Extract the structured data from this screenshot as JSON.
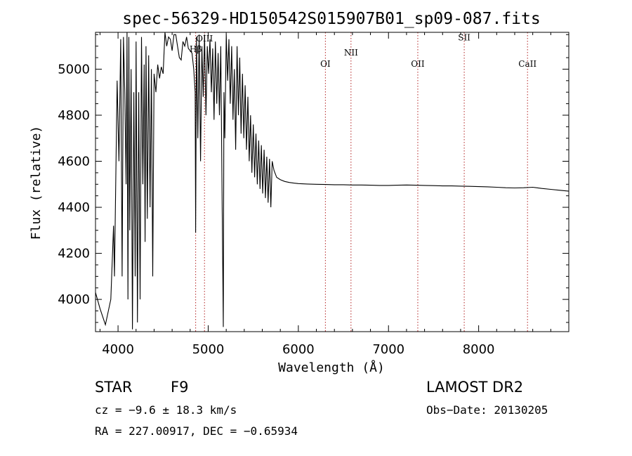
{
  "chart_data": {
    "type": "line",
    "title": "spec-56329-HD150542S015907B01_sp09-087.fits",
    "xlabel": "Wavelength (Å)",
    "ylabel": "Flux (relative)",
    "xlim": [
      3750,
      9000
    ],
    "ylim": [
      3860,
      5160
    ],
    "x_ticks": [
      4000,
      5000,
      6000,
      7000,
      8000
    ],
    "y_ticks": [
      4000,
      4200,
      4400,
      4600,
      4800,
      5000
    ],
    "grid": false,
    "line_color": "#000000",
    "marker_color": "#b22222",
    "spectral_lines": [
      {
        "label": "Hβ",
        "wavelength": 4861,
        "label_flux": 5075
      },
      {
        "label": "OIII",
        "wavelength": 4959,
        "label_flux": 5120
      },
      {
        "label": "OI",
        "wavelength": 6300,
        "label_flux": 5010
      },
      {
        "label": "NII",
        "wavelength": 6584,
        "label_flux": 5060
      },
      {
        "label": "OII",
        "wavelength": 7325,
        "label_flux": 5010
      },
      {
        "label": "SII",
        "wavelength": 7840,
        "label_flux": 5125
      },
      {
        "label": "CaII",
        "wavelength": 8542,
        "label_flux": 5010
      }
    ],
    "series": [
      {
        "x": [
          3750,
          3800,
          3860,
          3920,
          3950,
          3960,
          3990,
          4010,
          4030,
          4045,
          4060,
          4075,
          4090,
          4100,
          4110,
          4120,
          4130,
          4145,
          4160,
          4175,
          4190,
          4200,
          4215,
          4230,
          4245,
          4260,
          4275,
          4290,
          4300,
          4310,
          4325,
          4340,
          4355,
          4370,
          4385,
          4400,
          4420,
          4440,
          4460,
          4480,
          4500,
          4520,
          4540,
          4560,
          4580,
          4600,
          4620,
          4640,
          4660,
          4680,
          4700,
          4720,
          4740,
          4760,
          4780,
          4800,
          4820,
          4840,
          4855,
          4861,
          4870,
          4885,
          4900,
          4915,
          4930,
          4945,
          4960,
          4975,
          4990,
          5005,
          5020,
          5035,
          5050,
          5065,
          5080,
          5095,
          5110,
          5125,
          5140,
          5155,
          5168,
          5175,
          5185,
          5200,
          5215,
          5230,
          5245,
          5260,
          5275,
          5290,
          5305,
          5320,
          5335,
          5350,
          5365,
          5380,
          5395,
          5410,
          5425,
          5440,
          5455,
          5470,
          5485,
          5500,
          5515,
          5530,
          5545,
          5560,
          5575,
          5590,
          5605,
          5620,
          5635,
          5650,
          5665,
          5680,
          5695,
          5710,
          5730,
          5760,
          5800,
          5850,
          5900,
          5950,
          6000,
          6100,
          6200,
          6300,
          6400,
          6500,
          6600,
          6700,
          6800,
          6900,
          7000,
          7100,
          7200,
          7300,
          7400,
          7500,
          7600,
          7700,
          7800,
          7900,
          8000,
          8100,
          8200,
          8300,
          8400,
          8500,
          8600,
          8700,
          8800,
          8900,
          9000
        ],
        "y": [
          4030,
          3960,
          3890,
          4000,
          4320,
          4100,
          4950,
          4600,
          5130,
          4100,
          5140,
          4900,
          4500,
          5160,
          4000,
          5140,
          4300,
          5000,
          3870,
          4900,
          4100,
          5120,
          3900,
          4900,
          4000,
          5140,
          4500,
          5020,
          4250,
          5100,
          4350,
          5060,
          4400,
          5000,
          4100,
          4980,
          4900,
          5020,
          4960,
          5010,
          4980,
          5160,
          5100,
          5140,
          5130,
          5080,
          5150,
          5150,
          5100,
          5050,
          5040,
          5120,
          5100,
          5140,
          5090,
          5080,
          5070,
          5000,
          4900,
          4290,
          5140,
          4700,
          5150,
          4600,
          5100,
          4880,
          5150,
          4800,
          5100,
          4980,
          5130,
          4900,
          5090,
          4780,
          5120,
          4850,
          5070,
          4800,
          5100,
          4400,
          3880,
          4900,
          4700,
          5150,
          4950,
          5130,
          4850,
          5100,
          4780,
          5000,
          4650,
          5100,
          4800,
          5050,
          4720,
          4980,
          4700,
          4930,
          4650,
          4880,
          4600,
          4800,
          4550,
          4760,
          4530,
          4720,
          4500,
          4690,
          4480,
          4670,
          4460,
          4650,
          4440,
          4620,
          4420,
          4610,
          4400,
          4600,
          4560,
          4530,
          4520,
          4512,
          4508,
          4505,
          4503,
          4501,
          4500,
          4499,
          4498,
          4498,
          4497,
          4497,
          4496,
          4495,
          4495,
          4496,
          4497,
          4496,
          4495,
          4494,
          4493,
          4493,
          4492,
          4491,
          4490,
          4489,
          4487,
          4485,
          4484,
          4485,
          4487,
          4482,
          4478,
          4474,
          4470
        ]
      }
    ]
  },
  "info": {
    "object_type": "STAR",
    "subclass": "F9",
    "survey": "LAMOST DR2",
    "cz": "cz = −9.6 ± 18.3 km/s",
    "obs_date": "Obs−Date: 20130205",
    "coords": "RA = 227.00917, DEC =  −0.65934"
  }
}
